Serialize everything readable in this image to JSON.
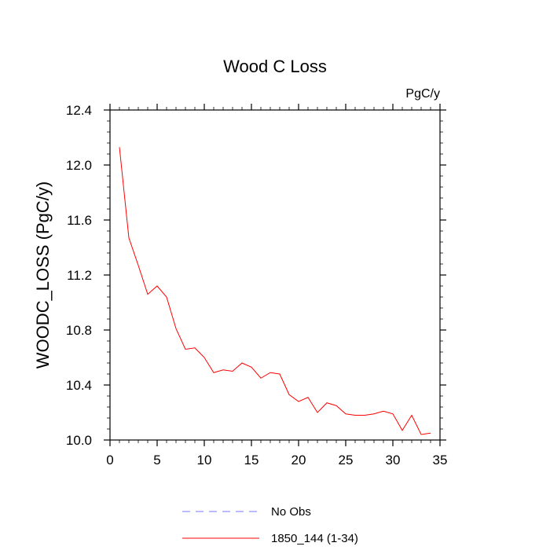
{
  "chart_data": {
    "type": "line",
    "title": "Wood C Loss",
    "units_label": "PgC/y",
    "xlabel": "",
    "ylabel": "WOODC_LOSS  (PgC/y)",
    "xlim": [
      0,
      35
    ],
    "ylim": [
      10.0,
      12.4
    ],
    "x_ticks": [
      0,
      5,
      10,
      15,
      20,
      25,
      30,
      35
    ],
    "x_tick_labels": [
      "0",
      "5",
      "10",
      "15",
      "20",
      "25",
      "30",
      "35"
    ],
    "y_ticks": [
      10.0,
      10.4,
      10.8,
      11.2,
      11.6,
      12.0,
      12.4
    ],
    "y_tick_labels": [
      "10.0",
      "10.4",
      "10.8",
      "11.2",
      "11.6",
      "12.0",
      "12.4"
    ],
    "grid": false,
    "legend_position": "bottom",
    "series": [
      {
        "name": "No Obs",
        "color": "#7777ff",
        "dashed": true,
        "x": [],
        "y": []
      },
      {
        "name": "1850_144 (1-34)",
        "color": "#ff0000",
        "dashed": false,
        "x": [
          1,
          2,
          3,
          4,
          5,
          6,
          7,
          8,
          9,
          10,
          11,
          12,
          13,
          14,
          15,
          16,
          17,
          18,
          19,
          20,
          21,
          22,
          23,
          24,
          25,
          26,
          27,
          28,
          29,
          30,
          31,
          32,
          33,
          34
        ],
        "y": [
          12.13,
          11.47,
          11.27,
          11.06,
          11.12,
          11.04,
          10.81,
          10.66,
          10.67,
          10.6,
          10.49,
          10.51,
          10.5,
          10.56,
          10.53,
          10.45,
          10.49,
          10.48,
          10.33,
          10.28,
          10.31,
          10.2,
          10.27,
          10.25,
          10.19,
          10.18,
          10.18,
          10.19,
          10.21,
          10.19,
          10.07,
          10.18,
          10.04,
          10.05
        ]
      }
    ]
  }
}
